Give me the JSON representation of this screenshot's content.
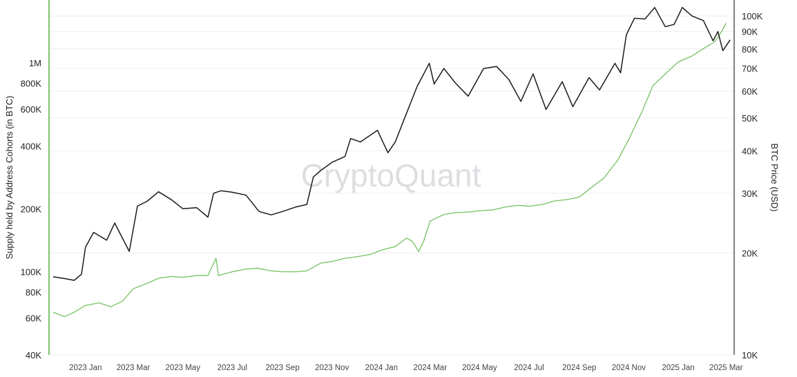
{
  "chart_data": {
    "type": "line",
    "watermark": "CryptoQuant",
    "colors": {
      "supply": "#7cc56a",
      "price": "#1a1a1a",
      "grid": "#eeeeee",
      "right_axis": "#555555"
    },
    "left_axis": {
      "label": "Supply held by Address Cohorts (in BTC)",
      "scale": "log",
      "ylim": [
        40000,
        2000000
      ],
      "ticks": [
        {
          "value": 40000,
          "label": "40K"
        },
        {
          "value": 60000,
          "label": "60K"
        },
        {
          "value": 80000,
          "label": "80K"
        },
        {
          "value": 100000,
          "label": "100K"
        },
        {
          "value": 200000,
          "label": "200K"
        },
        {
          "value": 400000,
          "label": "400K"
        },
        {
          "value": 600000,
          "label": "600K"
        },
        {
          "value": 800000,
          "label": "800K"
        },
        {
          "value": 1000000,
          "label": "1M"
        }
      ]
    },
    "right_axis": {
      "label": "BTC Price (USD)",
      "scale": "log",
      "ylim": [
        10000,
        111500
      ],
      "ticks": [
        {
          "value": 10000,
          "label": "10K"
        },
        {
          "value": 20000,
          "label": "20K"
        },
        {
          "value": 30000,
          "label": "30K"
        },
        {
          "value": 40000,
          "label": "40K"
        },
        {
          "value": 50000,
          "label": "50K"
        },
        {
          "value": 60000,
          "label": "60K"
        },
        {
          "value": 70000,
          "label": "70K"
        },
        {
          "value": 80000,
          "label": "80K"
        },
        {
          "value": 90000,
          "label": "90K"
        },
        {
          "value": 100000,
          "label": "100K"
        }
      ]
    },
    "x_axis": {
      "range": [
        "2022-12-01",
        "2025-03-25"
      ],
      "ticks": [
        {
          "date": "2023-01-15",
          "label": "2023 Jan"
        },
        {
          "date": "2023-03-15",
          "label": "2023 Mar"
        },
        {
          "date": "2023-05-15",
          "label": "2023 May"
        },
        {
          "date": "2023-07-15",
          "label": "2023 Jul"
        },
        {
          "date": "2023-09-15",
          "label": "2023 Sep"
        },
        {
          "date": "2023-11-15",
          "label": "2023 Nov"
        },
        {
          "date": "2024-01-15",
          "label": "2024 Jan"
        },
        {
          "date": "2024-03-15",
          "label": "2024 Mar"
        },
        {
          "date": "2024-05-15",
          "label": "2024 May"
        },
        {
          "date": "2024-07-15",
          "label": "2024 Jul"
        },
        {
          "date": "2024-09-15",
          "label": "2024 Sep"
        },
        {
          "date": "2024-11-15",
          "label": "2024 Nov"
        },
        {
          "date": "2025-01-15",
          "label": "2025 Jan"
        },
        {
          "date": "2025-03-15",
          "label": "2025 Mar"
        }
      ]
    },
    "series": [
      {
        "axis": "left",
        "values": [
          [
            "2022-12-06",
            64000
          ],
          [
            "2022-12-20",
            61000
          ],
          [
            "2023-01-01",
            64000
          ],
          [
            "2023-01-15",
            69000
          ],
          [
            "2023-02-01",
            71000
          ],
          [
            "2023-02-15",
            68000
          ],
          [
            "2023-03-01",
            72000
          ],
          [
            "2023-03-15",
            83000
          ],
          [
            "2023-04-01",
            88000
          ],
          [
            "2023-04-15",
            93000
          ],
          [
            "2023-05-01",
            95000
          ],
          [
            "2023-05-15",
            94000
          ],
          [
            "2023-06-01",
            96000
          ],
          [
            "2023-06-15",
            96000
          ],
          [
            "2023-06-25",
            116000
          ],
          [
            "2023-06-28",
            96000
          ],
          [
            "2023-07-15",
            100000
          ],
          [
            "2023-08-01",
            103000
          ],
          [
            "2023-08-15",
            104000
          ],
          [
            "2023-09-01",
            101000
          ],
          [
            "2023-09-15",
            100000
          ],
          [
            "2023-10-01",
            100000
          ],
          [
            "2023-10-15",
            101000
          ],
          [
            "2023-11-01",
            110000
          ],
          [
            "2023-11-15",
            112000
          ],
          [
            "2023-12-01",
            116000
          ],
          [
            "2023-12-15",
            118000
          ],
          [
            "2024-01-01",
            121000
          ],
          [
            "2024-01-15",
            127000
          ],
          [
            "2024-02-01",
            132000
          ],
          [
            "2024-02-15",
            145000
          ],
          [
            "2024-02-22",
            140000
          ],
          [
            "2024-03-01",
            125000
          ],
          [
            "2024-03-07",
            140000
          ],
          [
            "2024-03-15",
            175000
          ],
          [
            "2024-04-01",
            188000
          ],
          [
            "2024-04-15",
            192000
          ],
          [
            "2024-05-01",
            193000
          ],
          [
            "2024-05-15",
            196000
          ],
          [
            "2024-06-01",
            198000
          ],
          [
            "2024-06-15",
            204000
          ],
          [
            "2024-07-01",
            208000
          ],
          [
            "2024-07-15",
            206000
          ],
          [
            "2024-08-01",
            210000
          ],
          [
            "2024-08-15",
            218000
          ],
          [
            "2024-09-01",
            222000
          ],
          [
            "2024-09-15",
            228000
          ],
          [
            "2024-10-01",
            255000
          ],
          [
            "2024-10-15",
            280000
          ],
          [
            "2024-11-01",
            340000
          ],
          [
            "2024-11-15",
            430000
          ],
          [
            "2024-12-01",
            580000
          ],
          [
            "2024-12-15",
            780000
          ],
          [
            "2025-01-01",
            900000
          ],
          [
            "2025-01-15",
            1010000
          ],
          [
            "2025-02-01",
            1080000
          ],
          [
            "2025-02-15",
            1170000
          ],
          [
            "2025-03-01",
            1260000
          ],
          [
            "2025-03-10",
            1420000
          ],
          [
            "2025-03-15",
            1550000
          ]
        ]
      },
      {
        "axis": "right",
        "values": [
          [
            "2022-12-06",
            17000
          ],
          [
            "2022-12-20",
            16800
          ],
          [
            "2023-01-01",
            16600
          ],
          [
            "2023-01-10",
            17300
          ],
          [
            "2023-01-15",
            20800
          ],
          [
            "2023-01-25",
            23000
          ],
          [
            "2023-02-10",
            21800
          ],
          [
            "2023-02-20",
            24500
          ],
          [
            "2023-03-10",
            20200
          ],
          [
            "2023-03-20",
            27500
          ],
          [
            "2023-04-01",
            28400
          ],
          [
            "2023-04-15",
            30300
          ],
          [
            "2023-05-01",
            28700
          ],
          [
            "2023-05-15",
            27000
          ],
          [
            "2023-06-01",
            27200
          ],
          [
            "2023-06-15",
            25500
          ],
          [
            "2023-06-22",
            30000
          ],
          [
            "2023-07-01",
            30500
          ],
          [
            "2023-07-15",
            30200
          ],
          [
            "2023-08-01",
            29600
          ],
          [
            "2023-08-17",
            26500
          ],
          [
            "2023-09-01",
            25900
          ],
          [
            "2023-09-15",
            26500
          ],
          [
            "2023-10-01",
            27300
          ],
          [
            "2023-10-15",
            27800
          ],
          [
            "2023-10-23",
            33500
          ],
          [
            "2023-11-01",
            35000
          ],
          [
            "2023-11-15",
            37000
          ],
          [
            "2023-12-01",
            38500
          ],
          [
            "2023-12-08",
            43500
          ],
          [
            "2023-12-20",
            42500
          ],
          [
            "2024-01-10",
            46000
          ],
          [
            "2024-01-23",
            39500
          ],
          [
            "2024-02-01",
            42500
          ],
          [
            "2024-02-15",
            51700
          ],
          [
            "2024-02-28",
            62000
          ],
          [
            "2024-03-14",
            72500
          ],
          [
            "2024-03-20",
            63000
          ],
          [
            "2024-04-01",
            70000
          ],
          [
            "2024-04-15",
            63500
          ],
          [
            "2024-05-01",
            58000
          ],
          [
            "2024-05-20",
            70000
          ],
          [
            "2024-06-05",
            71000
          ],
          [
            "2024-06-20",
            65000
          ],
          [
            "2024-07-05",
            56000
          ],
          [
            "2024-07-20",
            67500
          ],
          [
            "2024-08-05",
            53000
          ],
          [
            "2024-08-25",
            64000
          ],
          [
            "2024-09-07",
            54000
          ],
          [
            "2024-09-27",
            65800
          ],
          [
            "2024-10-10",
            60500
          ],
          [
            "2024-10-29",
            72500
          ],
          [
            "2024-11-05",
            68000
          ],
          [
            "2024-11-12",
            88000
          ],
          [
            "2024-11-22",
            98500
          ],
          [
            "2024-12-05",
            98000
          ],
          [
            "2024-12-17",
            106000
          ],
          [
            "2024-12-30",
            93000
          ],
          [
            "2025-01-10",
            94500
          ],
          [
            "2025-01-20",
            106000
          ],
          [
            "2025-02-01",
            100000
          ],
          [
            "2025-02-15",
            97000
          ],
          [
            "2025-02-27",
            84500
          ],
          [
            "2025-03-05",
            90000
          ],
          [
            "2025-03-11",
            79000
          ],
          [
            "2025-03-20",
            85000
          ]
        ]
      }
    ]
  }
}
